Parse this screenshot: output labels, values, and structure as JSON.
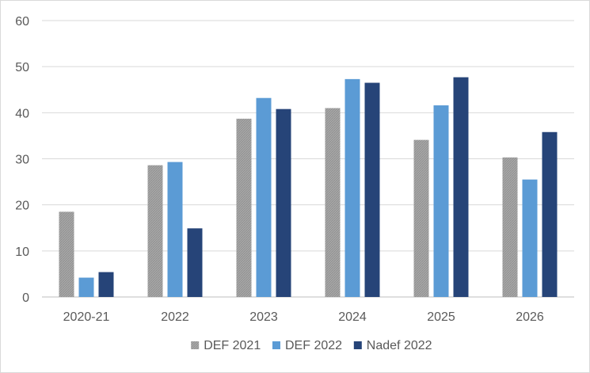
{
  "chart_data": {
    "type": "bar",
    "title": "",
    "xlabel": "",
    "ylabel": "",
    "categories": [
      "2020-21",
      "2022",
      "2023",
      "2024",
      "2025",
      "2026"
    ],
    "series": [
      {
        "name": "DEF 2021",
        "color": "#a5a5a5",
        "pattern": "hatched-gray",
        "values": [
          18.5,
          28.6,
          38.7,
          41.0,
          34.1,
          30.3
        ]
      },
      {
        "name": "DEF 2022",
        "color": "#5b9bd5",
        "values": [
          4.2,
          29.3,
          43.2,
          47.3,
          41.6,
          25.5
        ]
      },
      {
        "name": "Nadef 2022",
        "color": "#264478",
        "values": [
          5.4,
          14.9,
          40.8,
          46.5,
          47.7,
          35.8
        ]
      }
    ],
    "ylim": [
      0,
      60
    ],
    "yticks": [
      0,
      10,
      20,
      30,
      40,
      50,
      60
    ],
    "grid": true,
    "legend_position": "bottom"
  }
}
